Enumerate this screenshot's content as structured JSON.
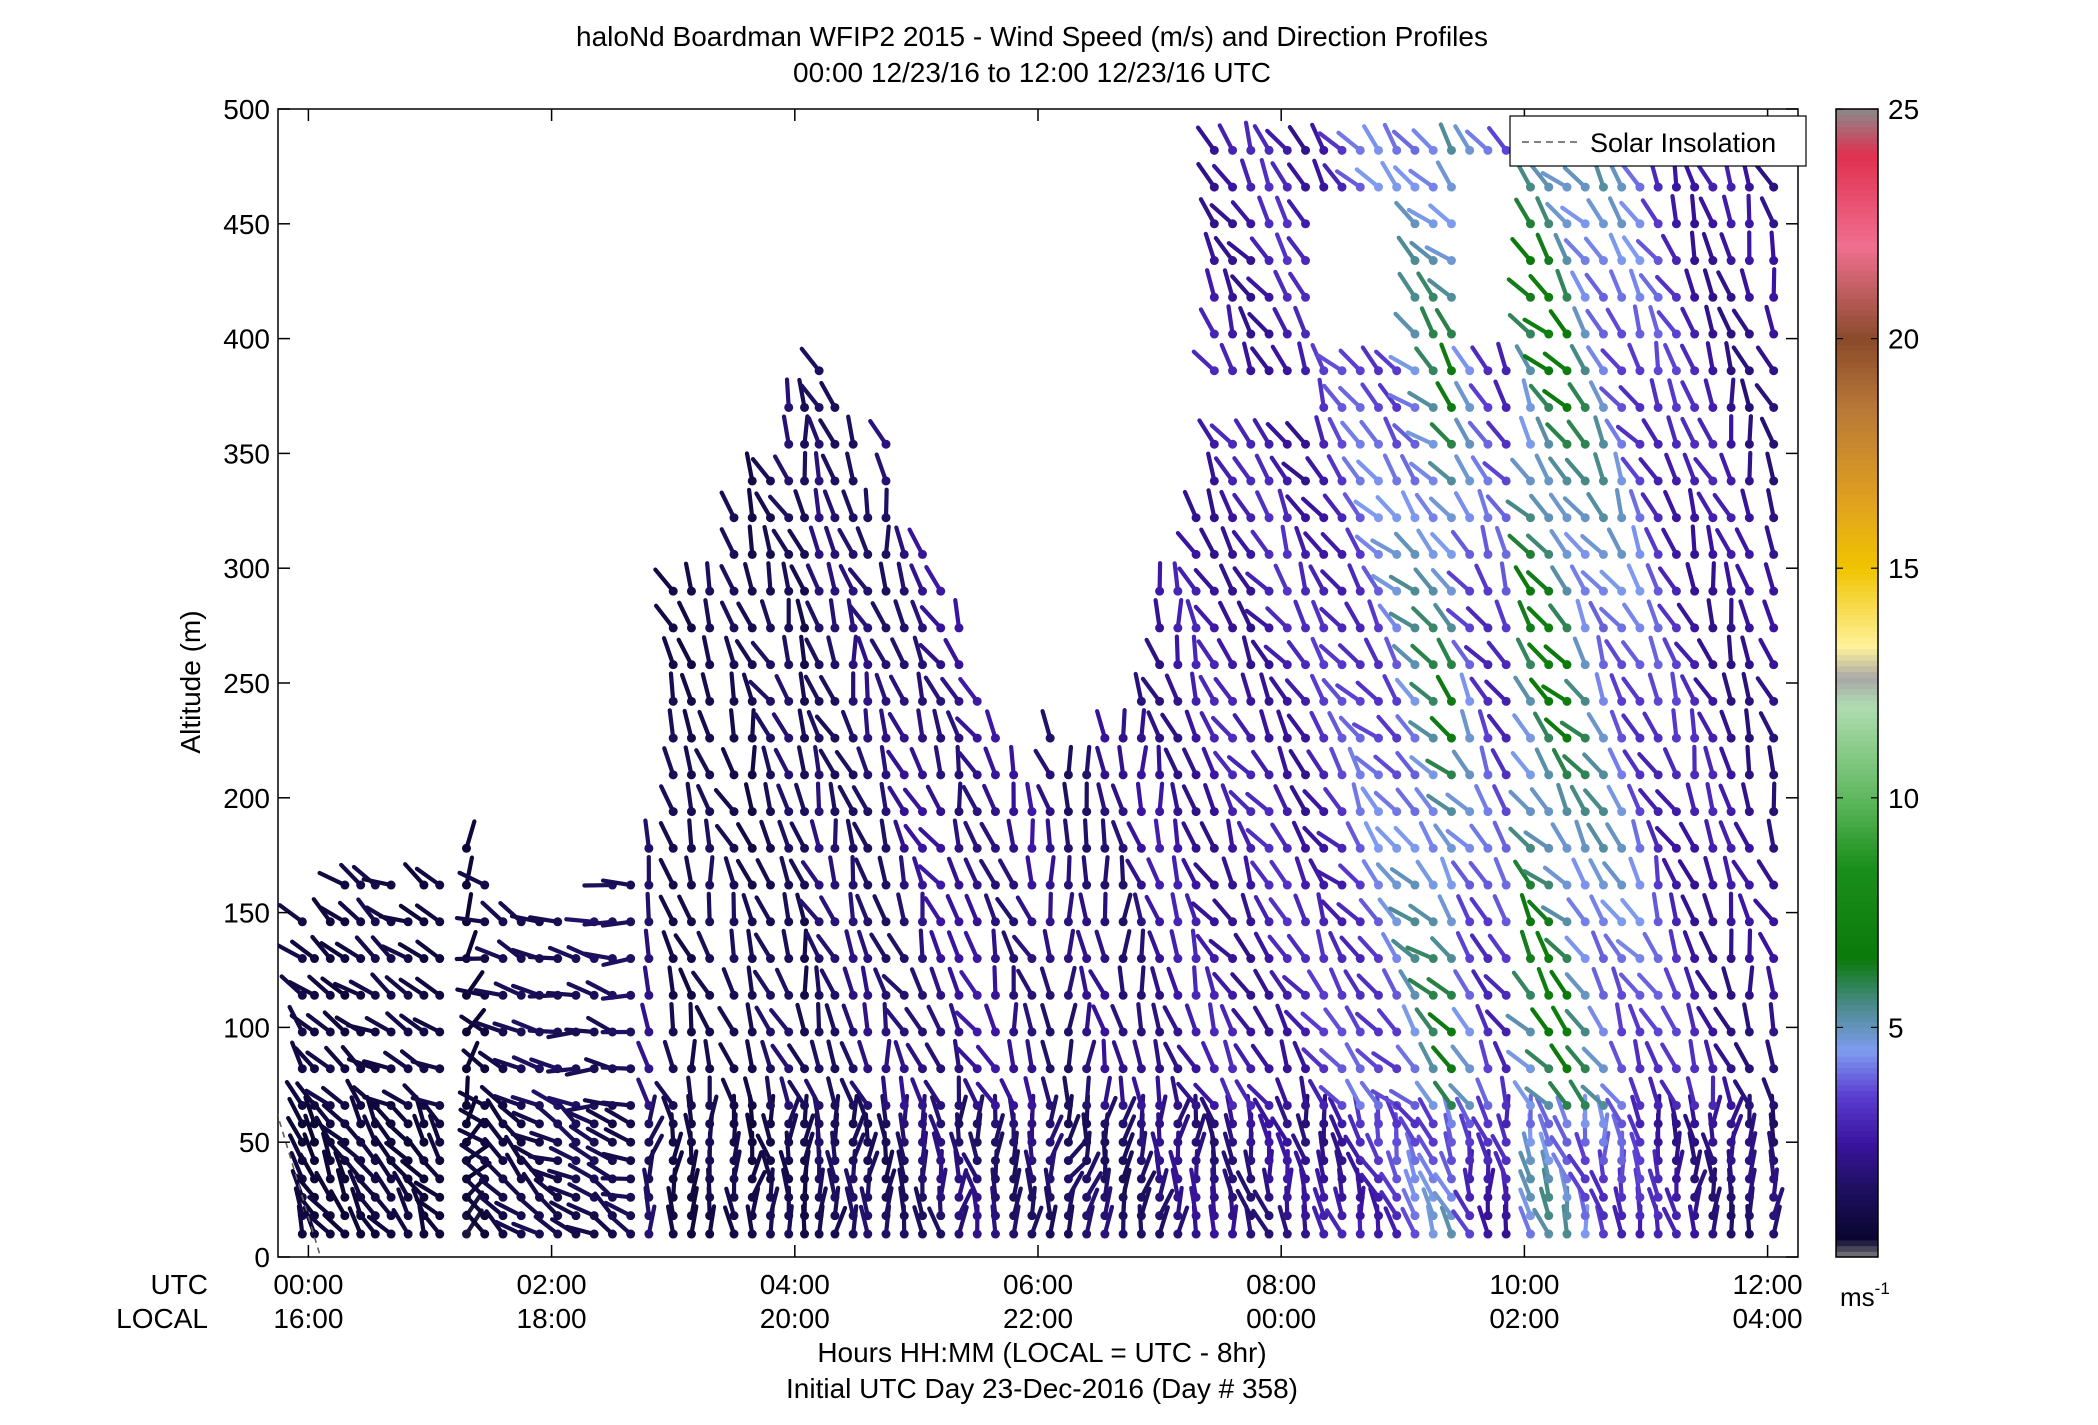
{
  "chart_data": {
    "type": "wind-barb-profile",
    "title": "haloNd Boardman WFIP2 2015 - Wind Speed (m/s) and Direction Profiles",
    "subtitle": "00:00 12/23/16 to 12:00 12/23/16  UTC",
    "ylabel": "Altitude (m)",
    "xlabel": "Hours HH:MM  (LOCAL = UTC - 8hr)",
    "xlabel2": "Initial UTC Day 23-Dec-2016 (Day # 358)",
    "row_label_utc": "UTC",
    "row_label_local": "LOCAL",
    "ylim": [
      0,
      500
    ],
    "xlim_hours": [
      -0.25,
      12.25
    ],
    "yticks": [
      0,
      50,
      100,
      150,
      200,
      250,
      300,
      350,
      400,
      450,
      500
    ],
    "xticks": [
      {
        "hour": 0,
        "utc": "00:00",
        "local": "16:00"
      },
      {
        "hour": 2,
        "utc": "02:00",
        "local": "18:00"
      },
      {
        "hour": 4,
        "utc": "04:00",
        "local": "20:00"
      },
      {
        "hour": 6,
        "utc": "06:00",
        "local": "22:00"
      },
      {
        "hour": 8,
        "utc": "08:00",
        "local": "00:00"
      },
      {
        "hour": 10,
        "utc": "10:00",
        "local": "02:00"
      },
      {
        "hour": 12,
        "utc": "12:00",
        "local": "04:00"
      }
    ],
    "legend": {
      "label": "Solar Insolation",
      "position": "top-right"
    },
    "solar_insolation_line": {
      "hours": [
        -0.5,
        0.1
      ],
      "altitude": [
        105,
        0
      ]
    },
    "colorbar": {
      "min": 0,
      "max": 25,
      "ticks": [
        5,
        10,
        15,
        20,
        25
      ],
      "unit": "ms-1"
    },
    "colorscale": [
      {
        "v": 0,
        "c": "#7d7d7d"
      },
      {
        "v": 0.4,
        "c": "#0a0530"
      },
      {
        "v": 1.5,
        "c": "#1e1060"
      },
      {
        "v": 2.5,
        "c": "#3a14a0"
      },
      {
        "v": 3.5,
        "c": "#5a3cd0"
      },
      {
        "v": 4.5,
        "c": "#7f9cf0"
      },
      {
        "v": 5.5,
        "c": "#4a8a8a"
      },
      {
        "v": 6.5,
        "c": "#0b7a0b"
      },
      {
        "v": 8.5,
        "c": "#1a8f1a"
      },
      {
        "v": 10,
        "c": "#5fb85f"
      },
      {
        "v": 12,
        "c": "#b0dcb0"
      },
      {
        "v": 12.6,
        "c": "#a8a8a8"
      },
      {
        "v": 13.3,
        "c": "#fff29a"
      },
      {
        "v": 15,
        "c": "#f0c400"
      },
      {
        "v": 16.5,
        "c": "#e0a020"
      },
      {
        "v": 18.5,
        "c": "#b87838"
      },
      {
        "v": 20,
        "c": "#8a4a2a"
      },
      {
        "v": 22,
        "c": "#f07090"
      },
      {
        "v": 24,
        "c": "#e03050"
      },
      {
        "v": 25,
        "c": "#8a8a8a"
      }
    ],
    "barb_columns": [
      {
        "hour": -0.05,
        "top": 150,
        "speed": 1.0,
        "dir": 320
      },
      {
        "hour": 0.05,
        "top": 145,
        "speed": 0.8,
        "dir": 315
      },
      {
        "hour": 0.18,
        "top": 160,
        "speed": 1.0,
        "dir": 310
      },
      {
        "hour": 0.3,
        "top": 170,
        "speed": 0.9,
        "dir": 305
      },
      {
        "hour": 0.43,
        "top": 175,
        "speed": 1.0,
        "dir": 310
      },
      {
        "hour": 0.55,
        "top": 165,
        "speed": 1.1,
        "dir": 305
      },
      {
        "hour": 0.68,
        "top": 170,
        "speed": 1.0,
        "dir": 300
      },
      {
        "hour": 0.82,
        "top": 160,
        "speed": 1.0,
        "dir": 300
      },
      {
        "hour": 0.95,
        "top": 175,
        "speed": 0.9,
        "dir": 310
      },
      {
        "hour": 1.08,
        "top": 170,
        "speed": 1.0,
        "dir": 300
      },
      {
        "hour": 1.3,
        "top": 180,
        "speed": 0.6,
        "dir": 20
      },
      {
        "hour": 1.45,
        "top": 175,
        "speed": 1.0,
        "dir": 290
      },
      {
        "hour": 1.6,
        "top": 160,
        "speed": 1.2,
        "dir": 300
      },
      {
        "hour": 1.75,
        "top": 155,
        "speed": 1.3,
        "dir": 295
      },
      {
        "hour": 1.9,
        "top": 155,
        "speed": 1.5,
        "dir": 285
      },
      {
        "hour": 2.05,
        "top": 150,
        "speed": 1.6,
        "dir": 280
      },
      {
        "hour": 2.2,
        "top": 145,
        "speed": 1.7,
        "dir": 280
      },
      {
        "hour": 2.35,
        "top": 150,
        "speed": 1.7,
        "dir": 275
      },
      {
        "hour": 2.5,
        "top": 165,
        "speed": 1.5,
        "dir": 285
      },
      {
        "hour": 2.65,
        "top": 175,
        "speed": 1.6,
        "dir": 270
      },
      {
        "hour": 2.8,
        "top": 190,
        "speed": 2.2,
        "dir": 350
      },
      {
        "hour": 3.0,
        "top": 300,
        "speed": 1.3,
        "dir": 340
      },
      {
        "hour": 3.15,
        "top": 295,
        "speed": 1.2,
        "dir": 345
      },
      {
        "hour": 3.3,
        "top": 300,
        "speed": 1.5,
        "dir": 345
      },
      {
        "hour": 3.5,
        "top": 330,
        "speed": 1.4,
        "dir": 340
      },
      {
        "hour": 3.65,
        "top": 340,
        "speed": 1.2,
        "dir": 345
      },
      {
        "hour": 3.8,
        "top": 350,
        "speed": 1.6,
        "dir": 335
      },
      {
        "hour": 3.95,
        "top": 370,
        "speed": 1.8,
        "dir": 340
      },
      {
        "hour": 4.08,
        "top": 385,
        "speed": 1.4,
        "dir": 345
      },
      {
        "hour": 4.2,
        "top": 390,
        "speed": 2.0,
        "dir": 340
      },
      {
        "hour": 4.33,
        "top": 385,
        "speed": 1.9,
        "dir": 340
      },
      {
        "hour": 4.48,
        "top": 355,
        "speed": 2.0,
        "dir": 345
      },
      {
        "hour": 4.6,
        "top": 335,
        "speed": 2.1,
        "dir": 340
      },
      {
        "hour": 4.75,
        "top": 365,
        "speed": 2.0,
        "dir": 345
      },
      {
        "hour": 4.9,
        "top": 320,
        "speed": 2.3,
        "dir": 335
      },
      {
        "hour": 5.05,
        "top": 310,
        "speed": 2.5,
        "dir": 340
      },
      {
        "hour": 5.2,
        "top": 290,
        "speed": 2.6,
        "dir": 330
      },
      {
        "hour": 5.35,
        "top": 280,
        "speed": 2.5,
        "dir": 345
      },
      {
        "hour": 5.5,
        "top": 255,
        "speed": 2.7,
        "dir": 330
      },
      {
        "hour": 5.65,
        "top": 230,
        "speed": 2.6,
        "dir": 340
      },
      {
        "hour": 5.8,
        "top": 210,
        "speed": 2.4,
        "dir": 345
      },
      {
        "hour": 5.95,
        "top": 205,
        "speed": 2.6,
        "dir": 340
      },
      {
        "hour": 6.1,
        "top": 235,
        "speed": 2.3,
        "dir": 350
      },
      {
        "hour": 6.25,
        "top": 225,
        "speed": 2.0,
        "dir": 5
      },
      {
        "hour": 6.4,
        "top": 220,
        "speed": 2.2,
        "dir": 355
      },
      {
        "hour": 6.55,
        "top": 240,
        "speed": 2.4,
        "dir": 350
      },
      {
        "hour": 6.7,
        "top": 230,
        "speed": 2.2,
        "dir": 355
      },
      {
        "hour": 6.85,
        "top": 250,
        "speed": 2.5,
        "dir": 350
      },
      {
        "hour": 7.0,
        "top": 290,
        "speed": 2.8,
        "dir": 345
      },
      {
        "hour": 7.15,
        "top": 305,
        "speed": 2.9,
        "dir": 345
      },
      {
        "hour": 7.3,
        "top": 330,
        "speed": 3.0,
        "dir": 340
      },
      {
        "hour": 7.45,
        "top": 490,
        "speed": 3.0,
        "dir": 330
      },
      {
        "hour": 7.6,
        "top": 490,
        "speed": 3.1,
        "dir": 330
      },
      {
        "hour": 7.75,
        "top": 490,
        "speed": 3.0,
        "dir": 330
      },
      {
        "hour": 7.9,
        "top": 490,
        "speed": 3.2,
        "dir": 325
      },
      {
        "hour": 8.05,
        "top": 490,
        "speed": 3.3,
        "dir": 330
      },
      {
        "hour": 8.2,
        "top": 490,
        "speed": 3.1,
        "dir": 330
      },
      {
        "hour": 8.35,
        "top": 490,
        "speed": 3.5,
        "dir": 330
      },
      {
        "hour": 8.5,
        "top": 490,
        "speed": 3.8,
        "dir": 320
      },
      {
        "hour": 8.65,
        "top": 490,
        "speed": 4.2,
        "dir": 325
      },
      {
        "hour": 8.8,
        "top": 490,
        "speed": 4.5,
        "dir": 320
      },
      {
        "hour": 8.95,
        "top": 490,
        "speed": 4.8,
        "dir": 320
      },
      {
        "hour": 9.1,
        "top": 490,
        "speed": 5.5,
        "dir": 315
      },
      {
        "hour": 9.25,
        "top": 490,
        "speed": 6.0,
        "dir": 315
      },
      {
        "hour": 9.4,
        "top": 490,
        "speed": 6.5,
        "dir": 320
      },
      {
        "hour": 9.55,
        "top": 490,
        "speed": 5.0,
        "dir": 325
      },
      {
        "hour": 9.7,
        "top": 490,
        "speed": 4.2,
        "dir": 330
      },
      {
        "hour": 9.85,
        "top": 490,
        "speed": 4.0,
        "dir": 330
      },
      {
        "hour": 10.05,
        "top": 470,
        "speed": 6.5,
        "dir": 325
      },
      {
        "hour": 10.2,
        "top": 470,
        "speed": 7.0,
        "dir": 320
      },
      {
        "hour": 10.35,
        "top": 470,
        "speed": 6.8,
        "dir": 320
      },
      {
        "hour": 10.5,
        "top": 470,
        "speed": 6.0,
        "dir": 325
      },
      {
        "hour": 10.65,
        "top": 470,
        "speed": 5.5,
        "dir": 330
      },
      {
        "hour": 10.8,
        "top": 470,
        "speed": 5.0,
        "dir": 330
      },
      {
        "hour": 10.95,
        "top": 470,
        "speed": 4.5,
        "dir": 330
      },
      {
        "hour": 11.1,
        "top": 470,
        "speed": 4.0,
        "dir": 335
      },
      {
        "hour": 11.25,
        "top": 470,
        "speed": 3.6,
        "dir": 335
      },
      {
        "hour": 11.4,
        "top": 470,
        "speed": 3.2,
        "dir": 340
      },
      {
        "hour": 11.55,
        "top": 470,
        "speed": 3.0,
        "dir": 340
      },
      {
        "hour": 11.7,
        "top": 495,
        "speed": 2.8,
        "dir": 345
      },
      {
        "hour": 11.85,
        "top": 495,
        "speed": 2.6,
        "dir": 345
      },
      {
        "hour": 12.05,
        "top": 485,
        "speed": 2.5,
        "dir": 340
      }
    ]
  }
}
